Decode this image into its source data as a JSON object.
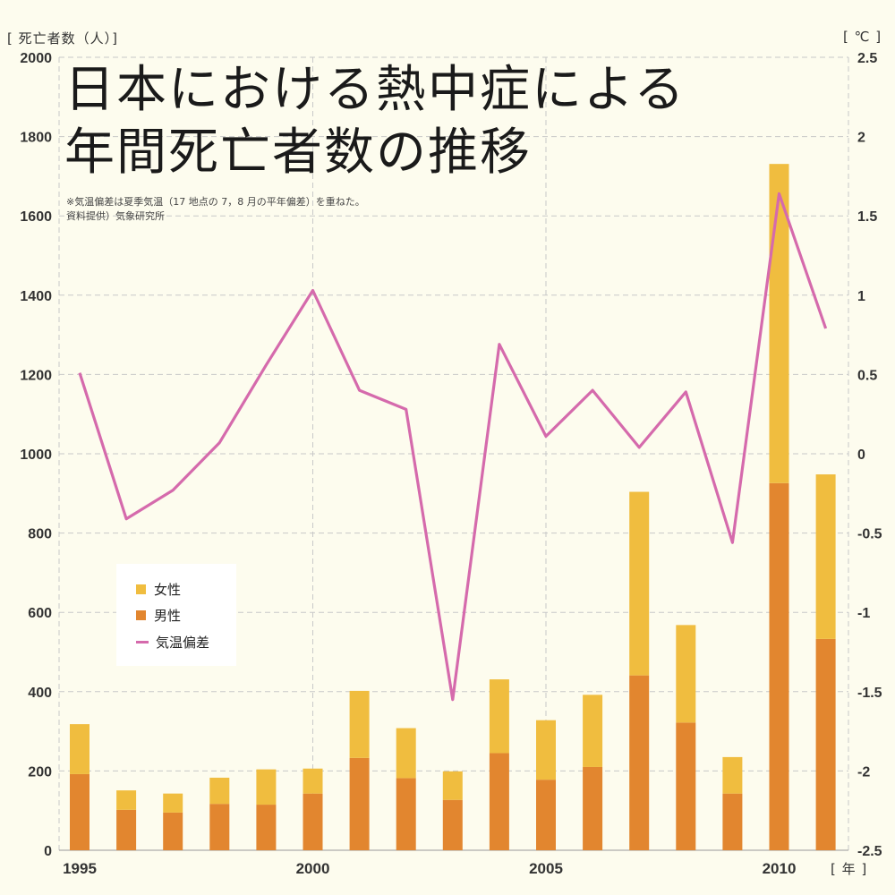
{
  "title_lines": [
    "日本における熱中症による",
    "年間死亡者数の推移"
  ],
  "notes": [
    "※気温偏差は夏季気温（17 地点の 7，8 月の平年偏差）を重ねた。",
    "資料提供）気象研究所"
  ],
  "colors": {
    "female": "#f0bd3f",
    "male": "#e2862f",
    "temp": "#d56aac",
    "grid": "#c8c8c8",
    "background": "#fdfcee"
  },
  "chart_data": {
    "type": "bar",
    "stacked": true,
    "title": "日本における熱中症による年間死亡者数の推移",
    "ylabel": "[ 死亡者数（人）]",
    "y2label": "[ ℃ ]",
    "xlabel": "[ 年 ]",
    "ylim": [
      0,
      2000
    ],
    "y2lim": [
      -2.5,
      2.5
    ],
    "yticks": [
      "0",
      "200",
      "400",
      "600",
      "800",
      "1000",
      "1200",
      "1400",
      "1600",
      "1800",
      "2000"
    ],
    "y2ticks": [
      "-2.5",
      "-2",
      "-1.5",
      "-1",
      "-0.5",
      "0",
      "0.5",
      "1",
      "1.5",
      "2",
      "2.5"
    ],
    "xticks": [
      "1995",
      "2000",
      "2005",
      "2010"
    ],
    "grid": true,
    "legend_position": "left-middle",
    "categories": [
      1995,
      1996,
      1997,
      1998,
      1999,
      2000,
      2001,
      2002,
      2003,
      2004,
      2005,
      2006,
      2007,
      2008,
      2009,
      2010,
      2011
    ],
    "series": [
      {
        "name": "男性",
        "type": "bar",
        "axis": "left",
        "values": [
          192,
          102,
          95,
          117,
          115,
          143,
          233,
          182,
          127,
          245,
          178,
          210,
          441,
          322,
          143,
          926,
          533
        ]
      },
      {
        "name": "女性",
        "type": "bar",
        "axis": "left",
        "values": [
          126,
          49,
          48,
          66,
          89,
          63,
          169,
          126,
          72,
          186,
          150,
          182,
          463,
          246,
          92,
          805,
          415
        ]
      },
      {
        "name": "気温偏差",
        "type": "line",
        "axis": "right",
        "values": [
          0.51,
          -0.41,
          -0.23,
          0.07,
          0.56,
          1.03,
          0.4,
          0.28,
          -1.55,
          0.69,
          0.11,
          0.4,
          0.04,
          0.39,
          -0.56,
          1.64,
          0.79
        ]
      }
    ]
  }
}
